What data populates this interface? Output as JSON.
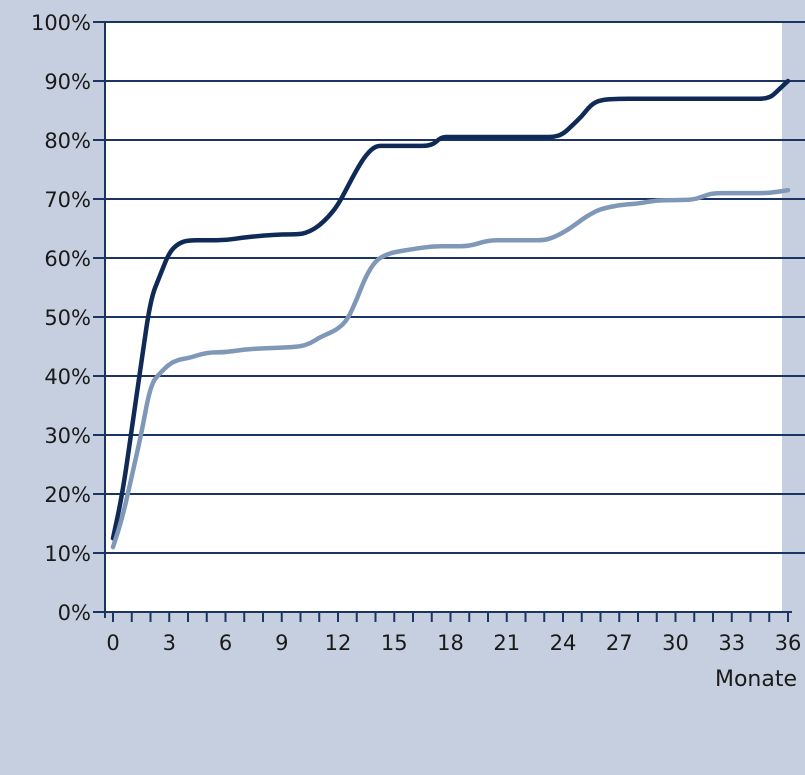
{
  "colors": {
    "background": "#c5cfdf",
    "plot_background": "#ffffff",
    "gridline": "#1b3461",
    "axis": "#1b3461",
    "series_dark": "#0f2a57",
    "series_light": "#7f98b8"
  },
  "chart_data": {
    "type": "line",
    "title": "",
    "xlabel": "Monate",
    "ylabel": "",
    "xlim": [
      0,
      36
    ],
    "ylim": [
      0,
      100
    ],
    "grid": true,
    "x_tick_labels": [
      "0",
      "3",
      "6",
      "9",
      "12",
      "15",
      "18",
      "21",
      "24",
      "27",
      "30",
      "33",
      "36"
    ],
    "y_tick_labels": [
      "0%",
      "10%",
      "20%",
      "30%",
      "40%",
      "50%",
      "60%",
      "70%",
      "80%",
      "90%",
      "100%"
    ],
    "series": [
      {
        "color": "#0f2a57",
        "x": [
          0,
          0.5,
          1,
          1.5,
          2,
          2.5,
          3,
          3.5,
          4,
          5,
          6,
          7,
          8,
          9,
          10,
          10.5,
          11,
          11.5,
          12,
          12.5,
          13,
          13.5,
          14,
          14.5,
          15,
          16,
          17,
          17.5,
          18,
          19,
          20,
          21,
          22,
          23,
          23.5,
          24,
          24.5,
          25,
          25.5,
          26,
          27,
          28,
          29,
          30,
          31,
          32,
          33,
          34,
          35,
          35.5,
          36
        ],
        "y": [
          12.5,
          20,
          31,
          42,
          53,
          57,
          61,
          62.5,
          63,
          63,
          63,
          63.5,
          63.8,
          64,
          64,
          64.5,
          65.5,
          67,
          69,
          72,
          75,
          77.5,
          79,
          79,
          79,
          79,
          79,
          80.5,
          80.5,
          80.5,
          80.5,
          80.5,
          80.5,
          80.5,
          80.5,
          81,
          82.5,
          84,
          86,
          86.8,
          87,
          87,
          87,
          87,
          87,
          87,
          87,
          87,
          87,
          88.5,
          90
        ]
      },
      {
        "color": "#7f98b8",
        "x": [
          0,
          0.5,
          1,
          1.5,
          2,
          2.5,
          3,
          3.5,
          4,
          5,
          6,
          7,
          8,
          9,
          10,
          10.5,
          11,
          11.5,
          12,
          12.5,
          13,
          13.5,
          14,
          14.5,
          15,
          16,
          17,
          18,
          19,
          20,
          21,
          22,
          23,
          23.5,
          24,
          24.5,
          25,
          25.5,
          26,
          27,
          28,
          29,
          30,
          31,
          31.5,
          32,
          33,
          34,
          35,
          36
        ],
        "y": [
          11,
          16,
          23,
          30,
          38.5,
          40.5,
          42,
          42.8,
          43,
          44,
          44,
          44.5,
          44.7,
          44.8,
          45,
          45.5,
          46.5,
          47.2,
          48,
          49.5,
          53,
          57,
          59.5,
          60.5,
          61,
          61.5,
          62,
          62,
          62,
          63,
          63,
          63,
          63,
          63.5,
          64.3,
          65.3,
          66.5,
          67.5,
          68.3,
          69,
          69.2,
          69.8,
          69.8,
          69.9,
          70.5,
          71,
          71,
          71,
          71,
          71.5
        ]
      }
    ]
  }
}
